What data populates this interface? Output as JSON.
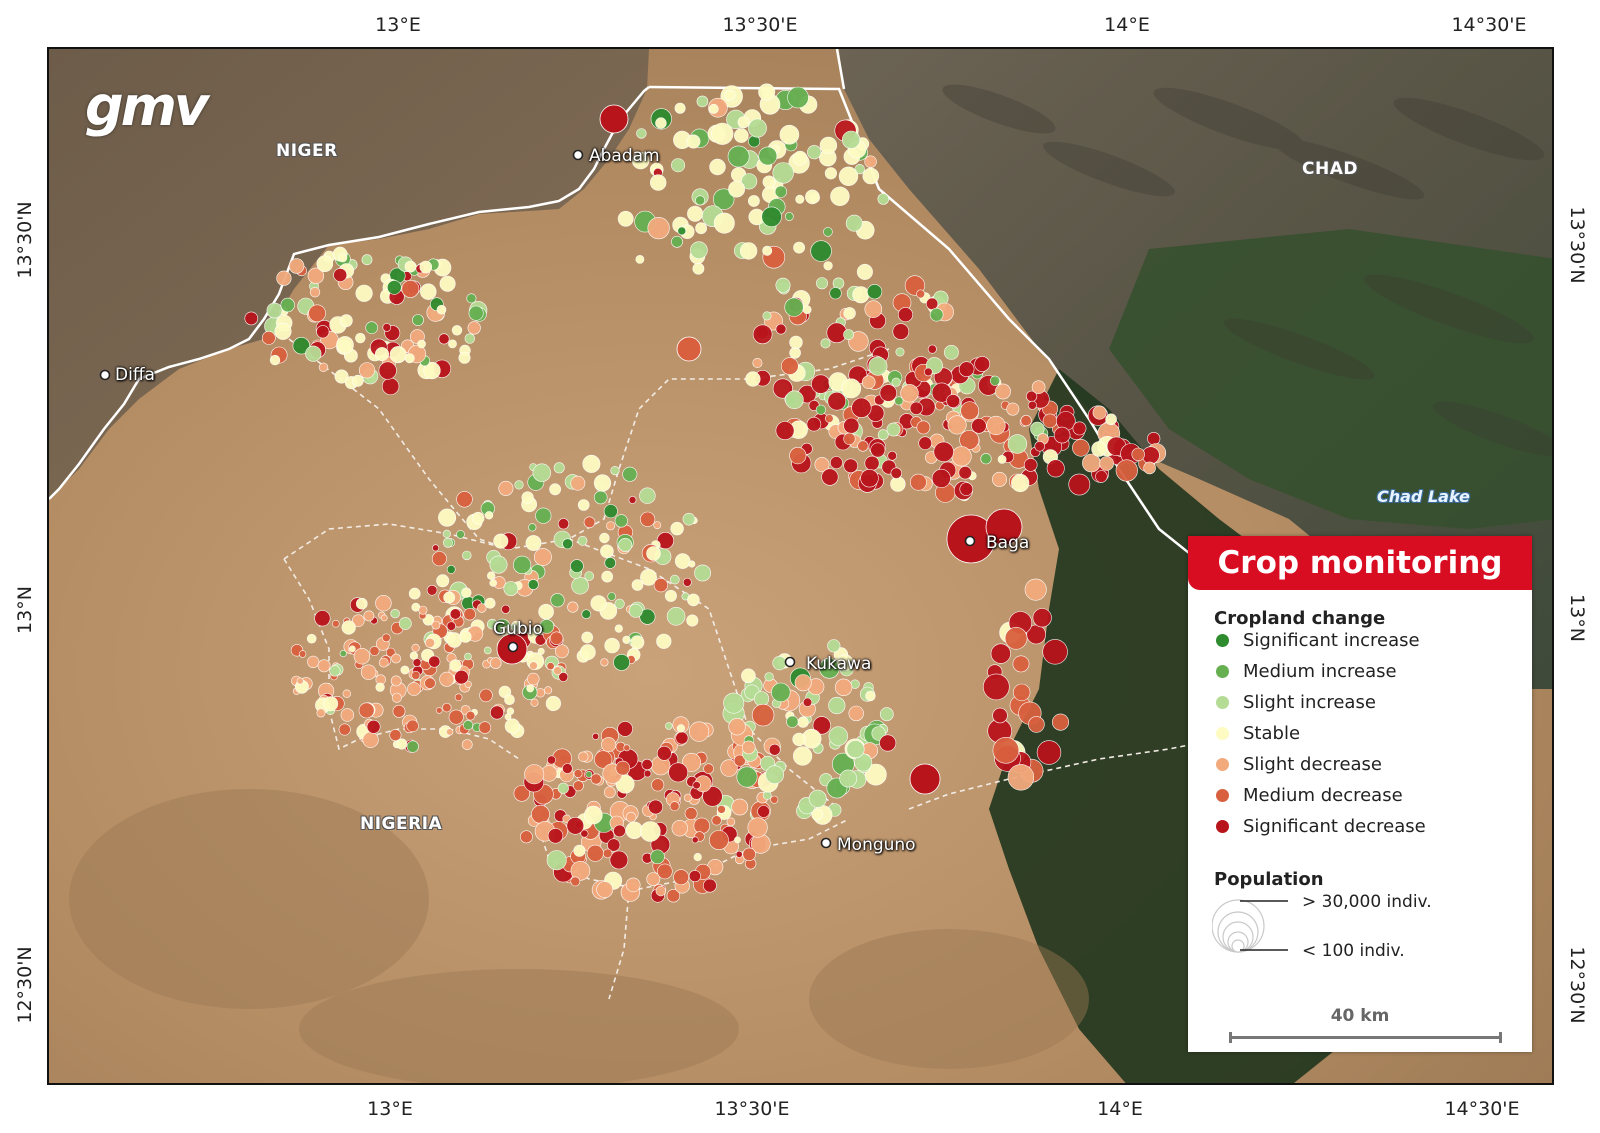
{
  "coords": {
    "top": [
      "13°E",
      "13°30'E",
      "14°E",
      "14°30'E"
    ],
    "bottom": [
      "13°E",
      "13°30'E",
      "14°E",
      "14°30'E"
    ],
    "left": [
      "13°30'N",
      "13°N",
      "12°30'N"
    ],
    "right": [
      "13°30'N",
      "13°N",
      "12°30'N"
    ]
  },
  "logo": "gmv",
  "countries": {
    "niger": "NIGER",
    "chad": "CHAD",
    "nigeria": "NIGERIA"
  },
  "water": {
    "lake": "Chad Lake"
  },
  "places": [
    "Abadam",
    "Diffa",
    "Baga",
    "Gubio",
    "Kukawa",
    "Monguno"
  ],
  "legend": {
    "title": "Crop monitoring",
    "cropland_heading": "Cropland change",
    "items": [
      {
        "label": "Significant increase",
        "color": "#2e8b2e"
      },
      {
        "label": "Medium increase",
        "color": "#66b052"
      },
      {
        "label": "Slight increase",
        "color": "#b5dc95"
      },
      {
        "label": "Stable",
        "color": "#fdfbc2"
      },
      {
        "label": "Slight decrease",
        "color": "#f2aa7d"
      },
      {
        "label": "Medium decrease",
        "color": "#d8603f"
      },
      {
        "label": "Significant decrease",
        "color": "#b8141c"
      }
    ],
    "population_heading": "Population",
    "pop_max": "> 30,000 indiv.",
    "pop_min": "< 100 indiv.",
    "scale": "40 km"
  }
}
